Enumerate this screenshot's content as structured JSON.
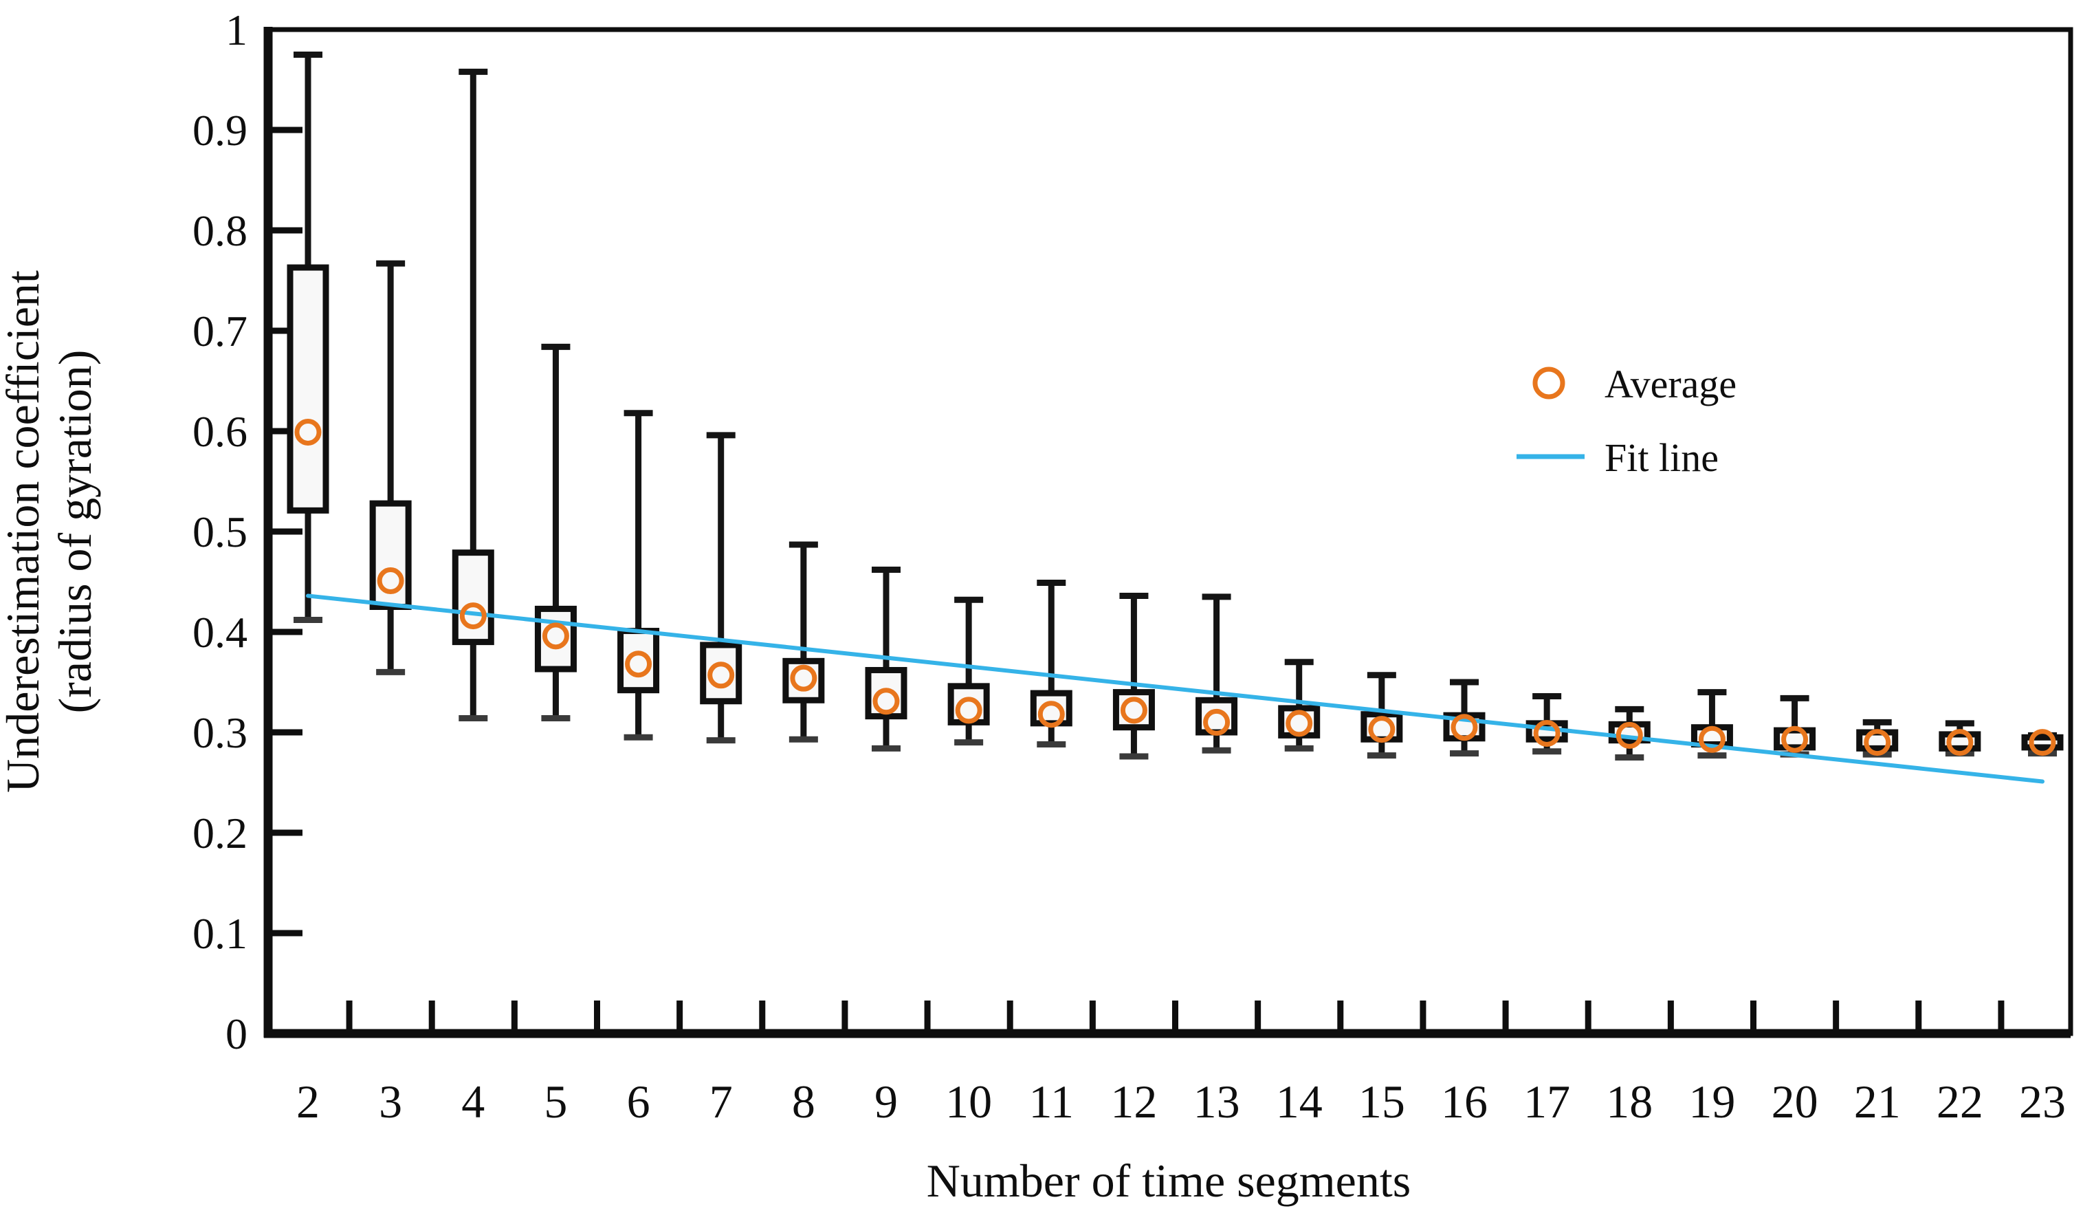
{
  "chart_data": {
    "type": "boxplot",
    "title": "",
    "xlabel": "Number of time segments",
    "ylabel_line1": "Underestimation coefficient",
    "ylabel_line2": "(radius of gyration)",
    "ylim": [
      0,
      1
    ],
    "y_ticks": [
      0,
      0.1,
      0.2,
      0.3,
      0.4,
      0.5,
      0.6,
      0.7,
      0.8,
      0.9,
      1
    ],
    "y_tick_labels": [
      "0",
      "0.1",
      "0.2",
      "0.3",
      "0.4",
      "0.5",
      "0.6",
      "0.7",
      "0.8",
      "0.9",
      "1"
    ],
    "categories": [
      "2",
      "3",
      "4",
      "5",
      "6",
      "7",
      "8",
      "9",
      "10",
      "11",
      "12",
      "13",
      "14",
      "15",
      "16",
      "17",
      "18",
      "19",
      "20",
      "21",
      "22",
      "23"
    ],
    "grid": false,
    "legend_position": "upper-right-inside",
    "boxes": [
      {
        "segment": 2,
        "whisker_low": 0.412,
        "q1": 0.521,
        "mean": 0.599,
        "q3": 0.763,
        "whisker_high": 0.975
      },
      {
        "segment": 3,
        "whisker_low": 0.36,
        "q1": 0.425,
        "mean": 0.451,
        "q3": 0.528,
        "whisker_high": 0.767
      },
      {
        "segment": 4,
        "whisker_low": 0.314,
        "q1": 0.39,
        "mean": 0.416,
        "q3": 0.479,
        "whisker_high": 0.958
      },
      {
        "segment": 5,
        "whisker_low": 0.314,
        "q1": 0.363,
        "mean": 0.396,
        "q3": 0.423,
        "whisker_high": 0.684
      },
      {
        "segment": 6,
        "whisker_low": 0.295,
        "q1": 0.342,
        "mean": 0.368,
        "q3": 0.401,
        "whisker_high": 0.618
      },
      {
        "segment": 7,
        "whisker_low": 0.292,
        "q1": 0.331,
        "mean": 0.357,
        "q3": 0.387,
        "whisker_high": 0.596
      },
      {
        "segment": 8,
        "whisker_low": 0.293,
        "q1": 0.332,
        "mean": 0.354,
        "q3": 0.371,
        "whisker_high": 0.487
      },
      {
        "segment": 9,
        "whisker_low": 0.284,
        "q1": 0.316,
        "mean": 0.331,
        "q3": 0.362,
        "whisker_high": 0.462
      },
      {
        "segment": 10,
        "whisker_low": 0.29,
        "q1": 0.31,
        "mean": 0.322,
        "q3": 0.346,
        "whisker_high": 0.432
      },
      {
        "segment": 11,
        "whisker_low": 0.288,
        "q1": 0.309,
        "mean": 0.318,
        "q3": 0.339,
        "whisker_high": 0.449
      },
      {
        "segment": 12,
        "whisker_low": 0.276,
        "q1": 0.305,
        "mean": 0.322,
        "q3": 0.34,
        "whisker_high": 0.436
      },
      {
        "segment": 13,
        "whisker_low": 0.282,
        "q1": 0.3,
        "mean": 0.31,
        "q3": 0.332,
        "whisker_high": 0.435
      },
      {
        "segment": 14,
        "whisker_low": 0.284,
        "q1": 0.297,
        "mean": 0.309,
        "q3": 0.324,
        "whisker_high": 0.37
      },
      {
        "segment": 15,
        "whisker_low": 0.277,
        "q1": 0.293,
        "mean": 0.303,
        "q3": 0.318,
        "whisker_high": 0.357
      },
      {
        "segment": 16,
        "whisker_low": 0.279,
        "q1": 0.294,
        "mean": 0.305,
        "q3": 0.317,
        "whisker_high": 0.35
      },
      {
        "segment": 17,
        "whisker_low": 0.281,
        "q1": 0.293,
        "mean": 0.299,
        "q3": 0.309,
        "whisker_high": 0.336
      },
      {
        "segment": 18,
        "whisker_low": 0.275,
        "q1": 0.292,
        "mean": 0.297,
        "q3": 0.308,
        "whisker_high": 0.323
      },
      {
        "segment": 19,
        "whisker_low": 0.277,
        "q1": 0.288,
        "mean": 0.293,
        "q3": 0.305,
        "whisker_high": 0.34
      },
      {
        "segment": 20,
        "whisker_low": 0.278,
        "q1": 0.285,
        "mean": 0.293,
        "q3": 0.302,
        "whisker_high": 0.334
      },
      {
        "segment": 21,
        "whisker_low": 0.278,
        "q1": 0.284,
        "mean": 0.29,
        "q3": 0.3,
        "whisker_high": 0.31
      },
      {
        "segment": 22,
        "whisker_low": 0.279,
        "q1": 0.284,
        "mean": 0.29,
        "q3": 0.298,
        "whisker_high": 0.309
      },
      {
        "segment": 23,
        "whisker_low": 0.279,
        "q1": 0.285,
        "mean": 0.29,
        "q3": 0.295,
        "whisker_high": 0.297
      }
    ],
    "fit_line": {
      "from_segment": 2,
      "from_value": 0.436,
      "to_segment": 23,
      "to_value": 0.251
    },
    "legend": {
      "average_label": "Average",
      "fit_line_label": "Fit line"
    },
    "colors": {
      "box_stroke": "#101010",
      "box_fill": "#f8f8f8",
      "whisker": "#141414",
      "whisker_cap_low": "#3a3a3a",
      "mean_marker": "#e8761d",
      "fit_line": "#35b3e8",
      "axis": "#0e0e0e",
      "text": "#0e0e0e"
    }
  }
}
